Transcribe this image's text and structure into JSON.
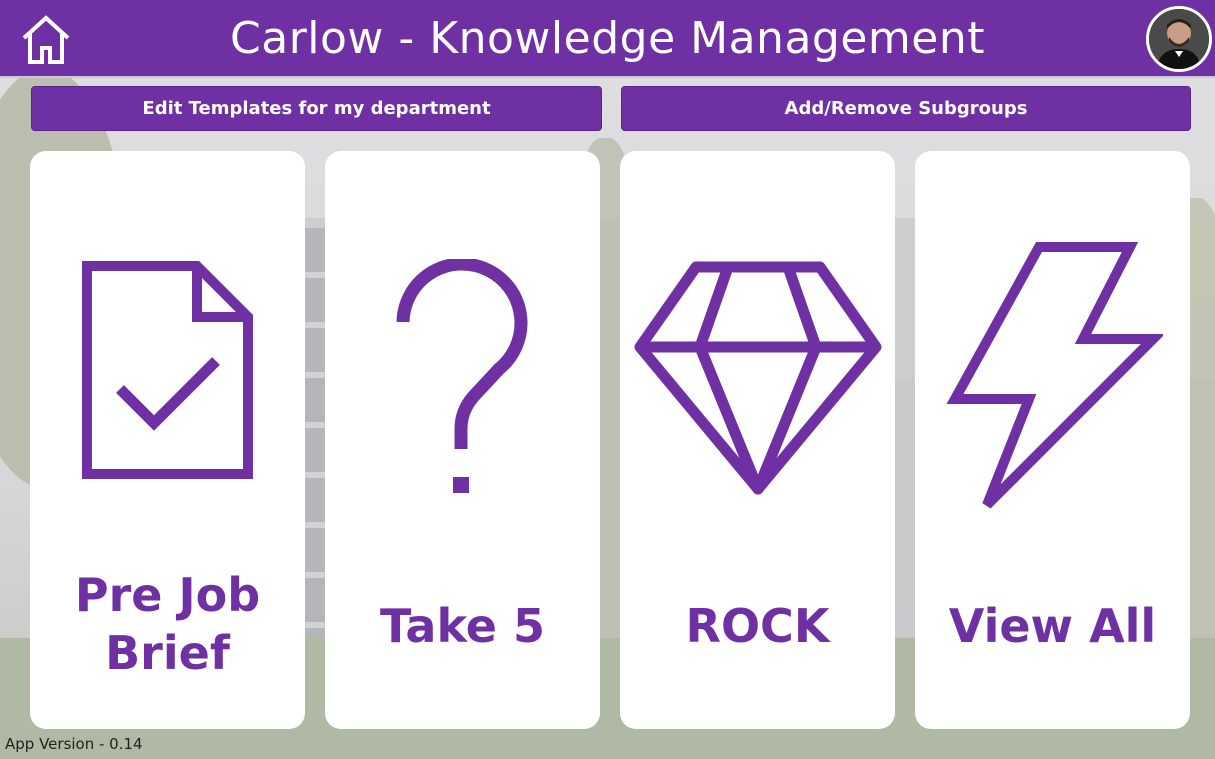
{
  "header": {
    "title": "Carlow - Knowledge Management",
    "background_color": "#6e30a3"
  },
  "actions": {
    "edit_templates": "Edit Templates for my department",
    "add_remove_subgroups": "Add/Remove Subgroups"
  },
  "cards": [
    {
      "label": "Pre Job Brief",
      "icon": "document-check-icon"
    },
    {
      "label": "Take 5",
      "icon": "question-mark-icon"
    },
    {
      "label": "ROCK",
      "icon": "diamond-icon"
    },
    {
      "label": "View All",
      "icon": "lightning-bolt-icon"
    }
  ],
  "footer": {
    "version": "App Version - 0.14"
  },
  "colors": {
    "accent": "#6e30a3",
    "card": "#ffffff"
  }
}
